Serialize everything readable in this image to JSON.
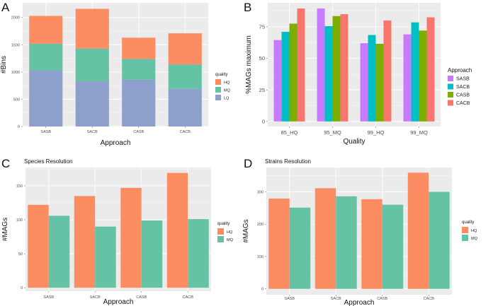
{
  "panel_letters": [
    "A",
    "B",
    "C",
    "D"
  ],
  "colors": {
    "panel_bg": "#EBEBEB",
    "grid": "#FFFFFF",
    "HQ": "#FC8D62",
    "MQ": "#66C2A5",
    "LQ": "#8DA0CB",
    "SASB": "#C77CFF",
    "SACB": "#00BFC4",
    "CASB": "#7CAE00",
    "CACB": "#F8766D"
  },
  "chart_data": [
    {
      "id": "A",
      "type": "bar",
      "stacked": true,
      "title": "",
      "xlabel": "Approach",
      "ylabel": "#Bins",
      "categories": [
        "SASB",
        "SACB",
        "CASB",
        "CACB"
      ],
      "series": [
        {
          "name": "LQ",
          "values": [
            1030,
            830,
            860,
            690
          ]
        },
        {
          "name": "MQ",
          "values": [
            490,
            600,
            380,
            450
          ]
        },
        {
          "name": "HQ",
          "values": [
            510,
            730,
            390,
            570
          ]
        }
      ],
      "legend_title": "quality",
      "legend_order": [
        "HQ",
        "MQ",
        "LQ"
      ],
      "ylim": [
        0,
        2270
      ],
      "yticks": [
        0,
        500,
        1000,
        1500,
        2000
      ]
    },
    {
      "id": "B",
      "type": "bar",
      "stacked": false,
      "title": "",
      "xlabel": "Quality",
      "ylabel": "%MAGs maximum",
      "categories": [
        "85_HQ",
        "95_MQ",
        "99_HQ",
        "99_MQ"
      ],
      "series": [
        {
          "name": "SASB",
          "values": [
            64.5,
            89.5,
            62.0,
            69.0
          ]
        },
        {
          "name": "SACB",
          "values": [
            71.0,
            75.5,
            68.5,
            78.5
          ]
        },
        {
          "name": "CASB",
          "values": [
            77.5,
            83.5,
            61.5,
            72.0
          ]
        },
        {
          "name": "CACB",
          "values": [
            89.5,
            85.0,
            80.0,
            82.5
          ]
        }
      ],
      "legend_title": "Approach",
      "legend_order": [
        "SASB",
        "SACB",
        "CASB",
        "CACB"
      ],
      "ylim": [
        -4,
        94
      ],
      "yticks": [
        0,
        25,
        50,
        75
      ]
    },
    {
      "id": "C",
      "type": "bar",
      "stacked": false,
      "title": "Species Resolution",
      "xlabel": "Approach",
      "ylabel": "#MAGs",
      "categories": [
        "SASB",
        "SACB",
        "CASB",
        "CACB"
      ],
      "series": [
        {
          "name": "HQ",
          "values": [
            122,
            135,
            147,
            169
          ]
        },
        {
          "name": "MQ",
          "values": [
            106,
            90,
            99,
            101
          ]
        }
      ],
      "legend_title": "quality",
      "legend_order": [
        "HQ",
        "MQ"
      ],
      "ylim": [
        -5,
        177
      ],
      "yticks": [
        0,
        50,
        100,
        150
      ]
    },
    {
      "id": "D",
      "type": "bar",
      "stacked": false,
      "title": "Strains Resolution",
      "xlabel": "Approach",
      "ylabel": "#MAGs",
      "categories": [
        "SASB",
        "SACB",
        "CASB",
        "CACB"
      ],
      "series": [
        {
          "name": "HQ",
          "values": [
            279,
            311,
            277,
            359
          ]
        },
        {
          "name": "MQ",
          "values": [
            251,
            286,
            260,
            300
          ]
        }
      ],
      "legend_title": "quality",
      "legend_order": [
        "HQ",
        "MQ"
      ],
      "ylim": [
        -18,
        375
      ],
      "yticks": [
        0,
        100,
        200,
        300
      ]
    }
  ]
}
